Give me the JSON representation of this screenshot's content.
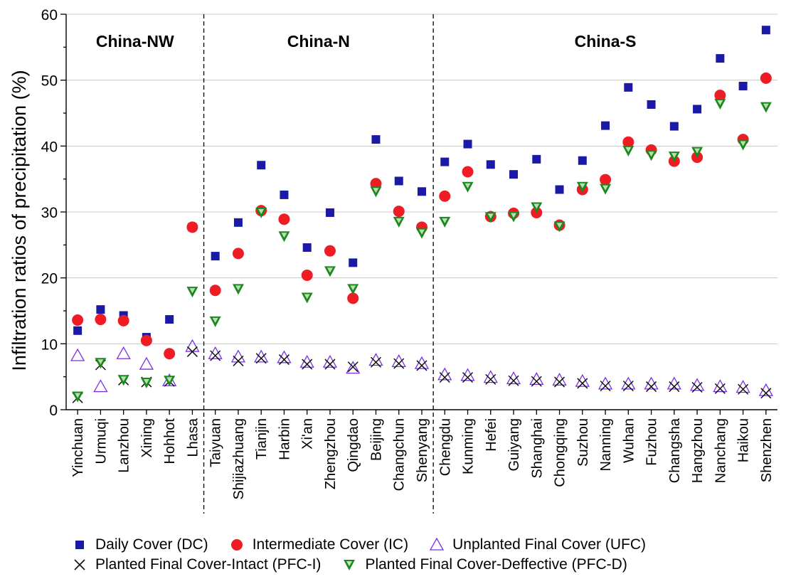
{
  "chart_data": {
    "type": "scatter",
    "ylabel": "Infiltration ratios of precipitation (%)",
    "xlabel": "",
    "ylim": [
      0,
      60
    ],
    "yticks": [
      0,
      10,
      20,
      30,
      40,
      50,
      60
    ],
    "grid": "horizontal",
    "legend_position": "bottom",
    "categories": [
      "Yinchuan",
      "Urmuqi",
      "Lanzhou",
      "Xining",
      "Hohhot",
      "Lhasa",
      "Taiyuan",
      "Shijiazhuang",
      "Tianjin",
      "Harbin",
      "Xi'an",
      "Zhengzhou",
      "Qingdao",
      "Beijing",
      "Changchun",
      "Shenyang",
      "Chengdu",
      "Kunming",
      "Hefei",
      "Guiyang",
      "Shanghai",
      "Chongqing",
      "Suzhou",
      "Nanning",
      "Wuhan",
      "Fuzhou",
      "Changsha",
      "Hangzhou",
      "Nanchang",
      "Haikou",
      "Shenzhen"
    ],
    "regions": [
      {
        "label": "China-NW",
        "start": 0,
        "end": 5
      },
      {
        "label": "China-N",
        "start": 6,
        "end": 15
      },
      {
        "label": "China-S",
        "start": 16,
        "end": 30
      }
    ],
    "series": [
      {
        "name": "Daily Cover (DC)",
        "marker": "square",
        "color": "#1a1aa6",
        "values": [
          12.0,
          15.2,
          14.3,
          11.0,
          13.7,
          27.7,
          23.3,
          28.4,
          37.1,
          32.6,
          24.6,
          29.9,
          22.3,
          41.0,
          34.7,
          33.1,
          37.6,
          40.3,
          37.2,
          35.7,
          38.0,
          33.4,
          37.8,
          43.1,
          48.9,
          46.3,
          43.0,
          45.6,
          53.3,
          49.1,
          57.6
        ]
      },
      {
        "name": "Intermediate Cover (IC)",
        "marker": "circle",
        "color": "#ee1c24",
        "values": [
          13.6,
          13.7,
          13.5,
          10.5,
          8.5,
          27.7,
          18.1,
          23.7,
          30.2,
          28.9,
          20.4,
          24.1,
          16.9,
          34.3,
          30.1,
          27.7,
          32.4,
          36.1,
          29.3,
          29.8,
          29.9,
          28.0,
          33.4,
          34.9,
          40.6,
          39.4,
          37.7,
          38.3,
          47.7,
          41.0,
          50.3
        ]
      },
      {
        "name": "Unplanted Final Cover (UFC)",
        "marker": "triangle-up",
        "color": "#7b2fe3",
        "values": [
          8.2,
          3.5,
          8.5,
          6.9,
          4.4,
          9.6,
          8.5,
          8.0,
          8.0,
          7.9,
          7.2,
          7.2,
          6.3,
          7.5,
          7.3,
          7.0,
          5.3,
          5.2,
          4.9,
          4.7,
          4.6,
          4.5,
          4.3,
          3.9,
          3.9,
          3.9,
          3.9,
          3.7,
          3.5,
          3.4,
          2.9
        ]
      },
      {
        "name": "Planted Final Cover-Intact (PFC-I)",
        "marker": "cross",
        "color": "#111111",
        "values": [
          1.8,
          6.8,
          4.5,
          4.2,
          4.3,
          8.8,
          8.2,
          7.4,
          7.8,
          7.6,
          6.9,
          6.9,
          6.5,
          7.2,
          7.0,
          6.7,
          4.9,
          4.9,
          4.6,
          4.4,
          4.3,
          4.2,
          4.0,
          3.6,
          3.6,
          3.5,
          3.5,
          3.4,
          3.2,
          3.1,
          2.5
        ]
      },
      {
        "name": "Planted Final Cover-Deffective (PFC-D)",
        "marker": "triangle-down",
        "color": "#1b8a1b",
        "values": [
          2.0,
          7.1,
          4.5,
          4.1,
          4.4,
          17.9,
          13.4,
          18.3,
          29.9,
          26.3,
          17.0,
          21.0,
          18.3,
          33.1,
          28.5,
          26.8,
          28.5,
          33.8,
          29.2,
          29.3,
          30.7,
          27.8,
          33.8,
          33.5,
          39.3,
          38.6,
          38.4,
          39.1,
          46.4,
          40.2,
          45.9
        ]
      }
    ]
  }
}
